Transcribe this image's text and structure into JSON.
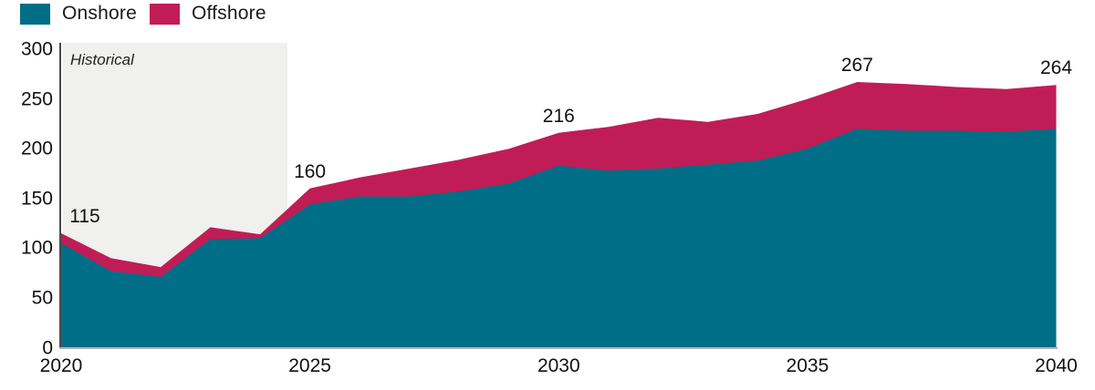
{
  "legend": {
    "items": [
      {
        "label": "Onshore",
        "color": "#006e87"
      },
      {
        "label": "Offshore",
        "color": "#c01d56"
      }
    ]
  },
  "historical": {
    "label": "Historical",
    "region_color": "#f0f0ee",
    "x_start": 2020,
    "x_end": 2024.55
  },
  "colors": {
    "onshore": "#006e87",
    "offshore": "#c01d56",
    "axis_line": "#4a4a4a",
    "baseline": "#b0b0b0"
  },
  "chart_data": {
    "type": "area",
    "stacked": true,
    "title": "",
    "xlabel": "",
    "ylabel": "",
    "xlim": [
      2020,
      2040
    ],
    "ylim": [
      0,
      300
    ],
    "grid": false,
    "legend_position": "top-left",
    "x": [
      2020,
      2021,
      2022,
      2023,
      2024,
      2025,
      2026,
      2027,
      2028,
      2029,
      2030,
      2031,
      2032,
      2033,
      2034,
      2035,
      2036,
      2037,
      2038,
      2039,
      2040
    ],
    "series": [
      {
        "name": "Onshore",
        "values": [
          105,
          77,
          71,
          109,
          110,
          144,
          152,
          152,
          157,
          165,
          183,
          178,
          180,
          184,
          188,
          200,
          220,
          218,
          218,
          217,
          220
        ]
      },
      {
        "name": "Offshore",
        "values": [
          10,
          13,
          10,
          12,
          4,
          16,
          19,
          28,
          32,
          35,
          33,
          44,
          51,
          43,
          47,
          50,
          47,
          47,
          44,
          43,
          44
        ]
      }
    ],
    "totals": [
      115,
      90,
      81,
      121,
      114,
      160,
      171,
      180,
      189,
      200,
      216,
      222,
      231,
      227,
      235,
      250,
      267,
      265,
      262,
      260,
      264
    ],
    "yticks": [
      0,
      50,
      100,
      150,
      200,
      250,
      300
    ],
    "xticks": [
      2020,
      2025,
      2030,
      2035,
      2040
    ],
    "annotations": [
      {
        "x": 2020,
        "total": 115,
        "label": "115",
        "dx": 26
      },
      {
        "x": 2025,
        "total": 160,
        "label": "160",
        "dx": 0
      },
      {
        "x": 2030,
        "total": 216,
        "label": "216",
        "dx": 0
      },
      {
        "x": 2036,
        "total": 267,
        "label": "267",
        "dx": 0
      },
      {
        "x": 2040,
        "total": 264,
        "label": "264",
        "dx": 0
      }
    ]
  }
}
